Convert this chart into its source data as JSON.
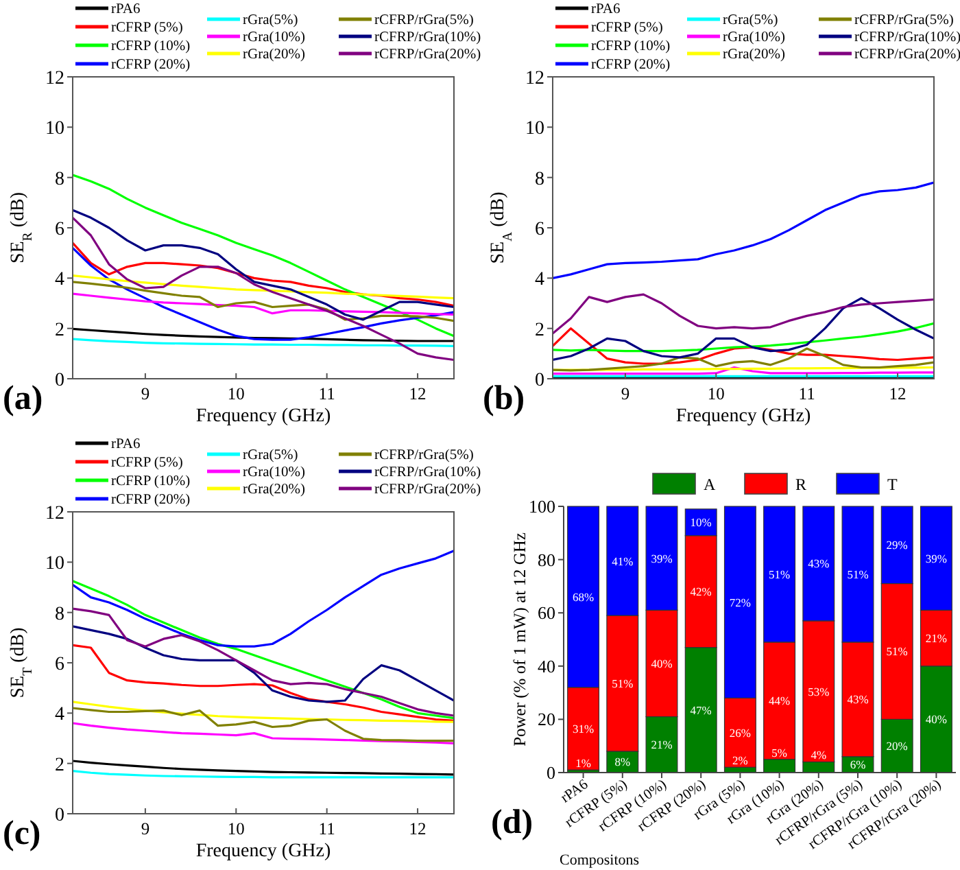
{
  "chart_data": [
    {
      "type": "line",
      "xlabel": "Frequency (GHz)",
      "ylabel": "SE$_{R}$ (dB)",
      "annotations": [
        "(a)"
      ],
      "legend": "top",
      "xlim": [
        8.2,
        12.4
      ],
      "xticks": [
        9,
        10,
        11,
        12
      ],
      "ylim": [
        0,
        12
      ],
      "yticks": [
        0,
        2,
        4,
        6,
        8,
        10,
        12
      ],
      "x": [
        8.2,
        8.4,
        8.6,
        8.8,
        9.0,
        9.2,
        9.4,
        9.6,
        9.8,
        10.0,
        10.2,
        10.4,
        10.6,
        10.8,
        11.0,
        11.2,
        11.4,
        11.6,
        11.8,
        12.0,
        12.2,
        12.4
      ],
      "series": [
        {
          "name": "rPA6",
          "color": "#000000",
          "values": [
            1.98,
            1.93,
            1.88,
            1.83,
            1.78,
            1.74,
            1.71,
            1.68,
            1.66,
            1.64,
            1.62,
            1.61,
            1.6,
            1.59,
            1.57,
            1.55,
            1.53,
            1.52,
            1.51,
            1.5,
            1.5,
            1.5
          ]
        },
        {
          "name": "rCFRP (5%)",
          "color": "#ff0000",
          "values": [
            5.4,
            4.6,
            4.15,
            4.45,
            4.6,
            4.6,
            4.55,
            4.5,
            4.4,
            4.2,
            4.0,
            3.9,
            3.85,
            3.7,
            3.6,
            3.45,
            3.35,
            3.3,
            3.2,
            3.15,
            3.05,
            2.9
          ]
        },
        {
          "name": "rCFRP (10%)",
          "color": "#00ff00",
          "values": [
            8.1,
            7.85,
            7.55,
            7.15,
            6.8,
            6.5,
            6.2,
            5.95,
            5.7,
            5.4,
            5.15,
            4.9,
            4.6,
            4.25,
            3.9,
            3.55,
            3.25,
            2.95,
            2.65,
            2.35,
            2.0,
            1.7
          ]
        },
        {
          "name": "rCFRP (20%)",
          "color": "#0000ff",
          "values": [
            5.2,
            4.5,
            3.95,
            3.55,
            3.2,
            2.85,
            2.55,
            2.25,
            1.95,
            1.7,
            1.58,
            1.55,
            1.55,
            1.65,
            1.78,
            1.92,
            2.05,
            2.2,
            2.32,
            2.42,
            2.52,
            2.65
          ]
        },
        {
          "name": "rGra(5%)",
          "color": "#00ffff",
          "values": [
            1.58,
            1.53,
            1.49,
            1.46,
            1.43,
            1.41,
            1.4,
            1.39,
            1.38,
            1.37,
            1.36,
            1.36,
            1.35,
            1.35,
            1.34,
            1.34,
            1.33,
            1.33,
            1.32,
            1.32,
            1.31,
            1.3
          ]
        },
        {
          "name": "rGra(10%)",
          "color": "#ff00ff",
          "values": [
            3.38,
            3.3,
            3.22,
            3.15,
            3.08,
            3.03,
            3.0,
            2.97,
            2.93,
            2.9,
            2.85,
            2.6,
            2.72,
            2.72,
            2.7,
            2.68,
            2.66,
            2.65,
            2.62,
            2.6,
            2.57,
            2.55
          ]
        },
        {
          "name": "rGra(20%)",
          "color": "#ffff00",
          "values": [
            4.1,
            4.03,
            3.95,
            3.88,
            3.82,
            3.76,
            3.7,
            3.65,
            3.6,
            3.55,
            3.52,
            3.5,
            3.47,
            3.44,
            3.42,
            3.38,
            3.35,
            3.32,
            3.29,
            3.26,
            3.23,
            3.2
          ]
        },
        {
          "name": "rCFRP/rGra(5%)",
          "color": "#808000",
          "values": [
            3.85,
            3.78,
            3.7,
            3.62,
            3.5,
            3.4,
            3.3,
            3.25,
            2.85,
            3.0,
            3.05,
            2.85,
            2.9,
            2.95,
            2.75,
            2.35,
            2.4,
            2.5,
            2.5,
            2.48,
            2.42,
            2.3
          ]
        },
        {
          "name": "rCFRP/rGra(10%)",
          "color": "#000080",
          "values": [
            6.7,
            6.4,
            6.0,
            5.5,
            5.1,
            5.3,
            5.3,
            5.2,
            4.95,
            4.35,
            3.85,
            3.7,
            3.55,
            3.25,
            2.95,
            2.55,
            2.35,
            2.7,
            3.05,
            3.05,
            2.95,
            2.85
          ]
        },
        {
          "name": "rCFRP/rGra(20%)",
          "color": "#800080",
          "values": [
            6.4,
            5.7,
            4.55,
            3.95,
            3.6,
            3.65,
            4.1,
            4.45,
            4.45,
            4.2,
            3.75,
            3.45,
            3.2,
            2.95,
            2.7,
            2.4,
            2.1,
            1.75,
            1.4,
            1.0,
            0.85,
            0.75
          ]
        }
      ]
    },
    {
      "type": "line",
      "xlabel": "Frequency (GHz)",
      "ylabel": "SE$_{A}$ (dB)",
      "annotations": [
        "(b)"
      ],
      "legend": "top",
      "xlim": [
        8.2,
        12.4
      ],
      "xticks": [
        9,
        10,
        11,
        12
      ],
      "ylim": [
        0,
        12
      ],
      "yticks": [
        0,
        2,
        4,
        6,
        8,
        10,
        12
      ],
      "x": [
        8.2,
        8.4,
        8.6,
        8.8,
        9.0,
        9.2,
        9.4,
        9.6,
        9.8,
        10.0,
        10.2,
        10.4,
        10.6,
        10.8,
        11.0,
        11.2,
        11.4,
        11.6,
        11.8,
        12.0,
        12.2,
        12.4
      ],
      "series": [
        {
          "name": "rPA6",
          "color": "#000000",
          "values": [
            0.05,
            0.05,
            0.05,
            0.05,
            0.05,
            0.05,
            0.05,
            0.05,
            0.05,
            0.05,
            0.05,
            0.05,
            0.05,
            0.05,
            0.05,
            0.05,
            0.05,
            0.05,
            0.05,
            0.05,
            0.05,
            0.05
          ]
        },
        {
          "name": "rCFRP (5%)",
          "color": "#ff0000",
          "values": [
            1.3,
            2.0,
            1.4,
            0.8,
            0.65,
            0.6,
            0.6,
            0.65,
            0.75,
            1.0,
            1.2,
            1.25,
            1.15,
            1.0,
            0.95,
            0.95,
            0.9,
            0.85,
            0.78,
            0.75,
            0.8,
            0.85
          ]
        },
        {
          "name": "rCFRP (10%)",
          "color": "#00ff00",
          "values": [
            1.15,
            1.12,
            1.15,
            1.12,
            1.1,
            1.1,
            1.1,
            1.12,
            1.15,
            1.2,
            1.25,
            1.28,
            1.32,
            1.38,
            1.45,
            1.52,
            1.6,
            1.67,
            1.77,
            1.88,
            2.02,
            2.2
          ]
        },
        {
          "name": "rCFRP (20%)",
          "color": "#0000ff",
          "values": [
            4.0,
            4.15,
            4.35,
            4.55,
            4.6,
            4.62,
            4.65,
            4.7,
            4.75,
            4.95,
            5.1,
            5.3,
            5.55,
            5.9,
            6.3,
            6.7,
            7.0,
            7.3,
            7.45,
            7.5,
            7.6,
            7.8
          ]
        },
        {
          "name": "rGra(5%)",
          "color": "#00ffff",
          "values": [
            0.1,
            0.1,
            0.1,
            0.1,
            0.1,
            0.1,
            0.1,
            0.1,
            0.1,
            0.1,
            0.1,
            0.1,
            0.1,
            0.1,
            0.1,
            0.1,
            0.1,
            0.1,
            0.1,
            0.1,
            0.1,
            0.1
          ]
        },
        {
          "name": "rGra(10%)",
          "color": "#ff00ff",
          "values": [
            0.2,
            0.2,
            0.2,
            0.2,
            0.2,
            0.2,
            0.2,
            0.2,
            0.2,
            0.22,
            0.45,
            0.3,
            0.22,
            0.22,
            0.22,
            0.22,
            0.23,
            0.23,
            0.24,
            0.24,
            0.25,
            0.25
          ]
        },
        {
          "name": "rGra(20%)",
          "color": "#ffff00",
          "values": [
            0.35,
            0.35,
            0.35,
            0.36,
            0.36,
            0.37,
            0.37,
            0.38,
            0.38,
            0.39,
            0.39,
            0.4,
            0.4,
            0.41,
            0.41,
            0.42,
            0.42,
            0.43,
            0.43,
            0.44,
            0.44,
            0.45
          ]
        },
        {
          "name": "rCFRP/rGra(5%)",
          "color": "#808000",
          "values": [
            0.35,
            0.33,
            0.35,
            0.4,
            0.45,
            0.5,
            0.6,
            0.85,
            0.8,
            0.5,
            0.65,
            0.7,
            0.55,
            0.8,
            1.2,
            0.9,
            0.55,
            0.45,
            0.45,
            0.5,
            0.55,
            0.65
          ]
        },
        {
          "name": "rCFRP/rGra(10%)",
          "color": "#000080",
          "values": [
            0.75,
            0.9,
            1.2,
            1.6,
            1.5,
            1.1,
            0.9,
            0.85,
            1.0,
            1.6,
            1.6,
            1.25,
            1.1,
            1.15,
            1.35,
            2.0,
            2.8,
            3.2,
            2.8,
            2.35,
            1.95,
            1.6
          ]
        },
        {
          "name": "rCFRP/rGra(20%)",
          "color": "#800080",
          "values": [
            1.8,
            2.4,
            3.25,
            3.05,
            3.25,
            3.35,
            3.0,
            2.5,
            2.1,
            2.0,
            2.05,
            2.0,
            2.05,
            2.3,
            2.5,
            2.65,
            2.85,
            2.95,
            3.0,
            3.05,
            3.1,
            3.15
          ]
        }
      ]
    },
    {
      "type": "line",
      "xlabel": "Frequency (GHz)",
      "ylabel": "SE$_{T}$ (dB)",
      "annotations": [
        "(c)"
      ],
      "legend": "top",
      "xlim": [
        8.2,
        12.4
      ],
      "xticks": [
        9,
        10,
        11,
        12
      ],
      "ylim": [
        0,
        12
      ],
      "yticks": [
        0,
        2,
        4,
        6,
        8,
        10,
        12
      ],
      "x": [
        8.2,
        8.4,
        8.6,
        8.8,
        9.0,
        9.2,
        9.4,
        9.6,
        9.8,
        10.0,
        10.2,
        10.4,
        10.6,
        10.8,
        11.0,
        11.2,
        11.4,
        11.6,
        11.8,
        12.0,
        12.2,
        12.4
      ],
      "series": [
        {
          "name": "rPA6",
          "color": "#000000",
          "values": [
            2.1,
            2.03,
            1.97,
            1.92,
            1.87,
            1.82,
            1.78,
            1.75,
            1.72,
            1.7,
            1.68,
            1.66,
            1.65,
            1.64,
            1.63,
            1.62,
            1.61,
            1.6,
            1.59,
            1.58,
            1.57,
            1.56
          ]
        },
        {
          "name": "rCFRP (5%)",
          "color": "#ff0000",
          "values": [
            6.7,
            6.6,
            5.6,
            5.3,
            5.22,
            5.18,
            5.12,
            5.08,
            5.08,
            5.12,
            5.15,
            5.1,
            4.8,
            4.55,
            4.45,
            4.35,
            4.22,
            4.05,
            3.95,
            3.85,
            3.75,
            3.7
          ]
        },
        {
          "name": "rCFRP (10%)",
          "color": "#00ff00",
          "values": [
            9.25,
            8.95,
            8.65,
            8.3,
            7.9,
            7.6,
            7.3,
            7.0,
            6.75,
            6.55,
            6.3,
            6.05,
            5.8,
            5.55,
            5.3,
            5.05,
            4.8,
            4.55,
            4.25,
            4.0,
            3.9,
            3.8
          ]
        },
        {
          "name": "rCFRP (20%)",
          "color": "#0000ff",
          "values": [
            9.1,
            8.6,
            8.4,
            8.1,
            7.75,
            7.45,
            7.15,
            6.9,
            6.7,
            6.65,
            6.65,
            6.75,
            7.15,
            7.65,
            8.1,
            8.6,
            9.05,
            9.5,
            9.75,
            9.95,
            10.15,
            10.45
          ]
        },
        {
          "name": "rGra(5%)",
          "color": "#00ffff",
          "values": [
            1.7,
            1.63,
            1.58,
            1.55,
            1.52,
            1.5,
            1.49,
            1.48,
            1.47,
            1.46,
            1.46,
            1.45,
            1.45,
            1.45,
            1.45,
            1.45,
            1.45,
            1.45,
            1.45,
            1.45,
            1.45,
            1.45
          ]
        },
        {
          "name": "rGra(10%)",
          "color": "#ff00ff",
          "values": [
            3.6,
            3.5,
            3.42,
            3.35,
            3.3,
            3.25,
            3.2,
            3.18,
            3.15,
            3.12,
            3.2,
            3.0,
            2.98,
            2.97,
            2.95,
            2.93,
            2.91,
            2.89,
            2.87,
            2.85,
            2.83,
            2.8
          ]
        },
        {
          "name": "rGra(20%)",
          "color": "#ffff00",
          "values": [
            4.45,
            4.35,
            4.25,
            4.17,
            4.1,
            4.03,
            3.98,
            3.93,
            3.88,
            3.85,
            3.82,
            3.8,
            3.78,
            3.76,
            3.75,
            3.73,
            3.72,
            3.7,
            3.69,
            3.68,
            3.66,
            3.65
          ]
        },
        {
          "name": "rCFRP/rGra(5%)",
          "color": "#808000",
          "values": [
            4.2,
            4.12,
            4.05,
            4.05,
            4.08,
            4.1,
            3.92,
            4.1,
            3.5,
            3.55,
            3.65,
            3.45,
            3.5,
            3.7,
            3.75,
            3.3,
            2.98,
            2.93,
            2.92,
            2.9,
            2.9,
            2.9
          ]
        },
        {
          "name": "rCFRP/rGra(10%)",
          "color": "#000080",
          "values": [
            7.45,
            7.3,
            7.15,
            6.95,
            6.6,
            6.3,
            6.15,
            6.1,
            6.1,
            6.1,
            5.6,
            4.9,
            4.65,
            4.5,
            4.45,
            4.5,
            5.35,
            5.9,
            5.7,
            5.3,
            4.9,
            4.5
          ]
        },
        {
          "name": "rCFRP/rGra(20%)",
          "color": "#800080",
          "values": [
            8.15,
            8.05,
            7.9,
            6.9,
            6.65,
            6.95,
            7.1,
            6.85,
            6.5,
            6.1,
            5.7,
            5.3,
            5.15,
            5.2,
            5.15,
            4.95,
            4.8,
            4.65,
            4.4,
            4.15,
            4.0,
            3.9
          ]
        }
      ]
    },
    {
      "type": "bar",
      "stacked": true,
      "xlabel": "Compositons",
      "ylabel": "Power (% of 1 mW) at 12 GHz",
      "annotations": [
        "(d)"
      ],
      "legend": "top",
      "ylim": [
        0,
        100
      ],
      "yticks": [
        0,
        20,
        40,
        60,
        80,
        100
      ],
      "categories": [
        "rPA6",
        "rCFRP (5%)",
        "rCFRP (10%)",
        "rCFRP (20%)",
        "rGra (5%)",
        "rGra (10%)",
        "rGra (20%)",
        "rCFRP/rGra (5%)",
        "rCFRP/rGra (10%)",
        "rCFRP/rGra (20%)"
      ],
      "series": [
        {
          "name": "A",
          "color": "#008000",
          "values": [
            1,
            8,
            21,
            47,
            2,
            5,
            4,
            6,
            20,
            40
          ],
          "value_labels": [
            "1%",
            "8%",
            "21%",
            "47%",
            "2%",
            "5%",
            "4%",
            "6%",
            "20%",
            "40%"
          ]
        },
        {
          "name": "R",
          "color": "#ff0000",
          "values": [
            31,
            51,
            40,
            42,
            26,
            44,
            53,
            43,
            51,
            21
          ],
          "value_labels": [
            "31%",
            "51%",
            "40%",
            "42%",
            "26%",
            "44%",
            "53%",
            "43%",
            "51%",
            "21%"
          ]
        },
        {
          "name": "T",
          "color": "#0000ff",
          "values": [
            68,
            41,
            39,
            10,
            72,
            51,
            43,
            51,
            29,
            39
          ],
          "value_labels": [
            "68%",
            "41%",
            "39%",
            "10%",
            "72%",
            "51%",
            "43%",
            "51%",
            "29%",
            "39%"
          ]
        }
      ]
    }
  ]
}
